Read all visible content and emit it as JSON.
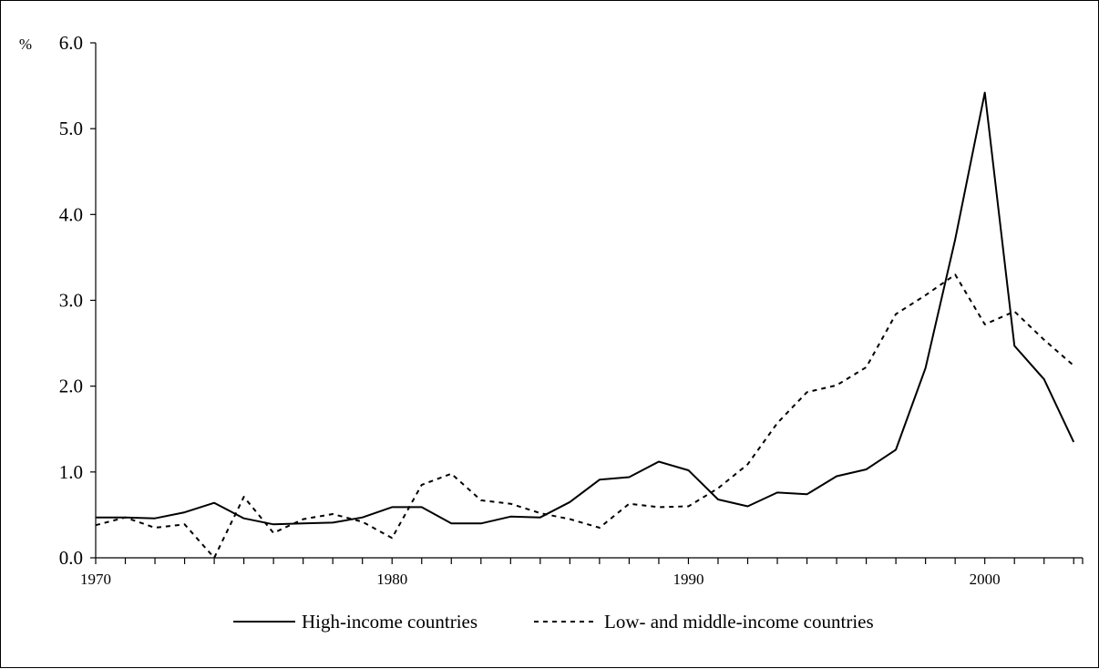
{
  "chart_data": {
    "type": "line",
    "ylabel": "%",
    "xlabel": "",
    "ylim": [
      0,
      6
    ],
    "xlim": [
      1970,
      2003
    ],
    "y_ticks": [
      "0.0",
      "1.0",
      "2.0",
      "3.0",
      "4.0",
      "5.0",
      "6.0"
    ],
    "x_tick_labels": [
      "1970",
      "1980",
      "1990",
      "2000"
    ],
    "grid": false,
    "legend_placement": "bottom",
    "x": [
      1970,
      1971,
      1972,
      1973,
      1974,
      1975,
      1976,
      1977,
      1978,
      1979,
      1980,
      1981,
      1982,
      1983,
      1984,
      1985,
      1986,
      1987,
      1988,
      1989,
      1990,
      1991,
      1992,
      1993,
      1994,
      1995,
      1996,
      1997,
      1998,
      1999,
      2000,
      2001,
      2002,
      2003
    ],
    "series": [
      {
        "name": "High-income countries",
        "style": "solid",
        "color": "#000000",
        "values": [
          0.47,
          0.47,
          0.46,
          0.53,
          0.64,
          0.46,
          0.39,
          0.4,
          0.41,
          0.47,
          0.59,
          0.59,
          0.4,
          0.4,
          0.48,
          0.47,
          0.65,
          0.91,
          0.94,
          1.12,
          1.02,
          0.68,
          0.6,
          0.76,
          0.74,
          0.95,
          1.03,
          1.26,
          2.21,
          3.71,
          5.42,
          2.47,
          2.08,
          1.35
        ]
      },
      {
        "name": "Low- and middle-income countries",
        "style": "dotted",
        "color": "#000000",
        "values": [
          0.38,
          0.47,
          0.35,
          0.39,
          0.0,
          0.71,
          0.29,
          0.45,
          0.51,
          0.42,
          0.23,
          0.85,
          0.98,
          0.67,
          0.63,
          0.52,
          0.45,
          0.35,
          0.63,
          0.59,
          0.6,
          0.81,
          1.09,
          1.57,
          1.93,
          2.01,
          2.22,
          2.84,
          3.06,
          3.3,
          2.72,
          2.87,
          2.54,
          2.24
        ]
      }
    ]
  }
}
